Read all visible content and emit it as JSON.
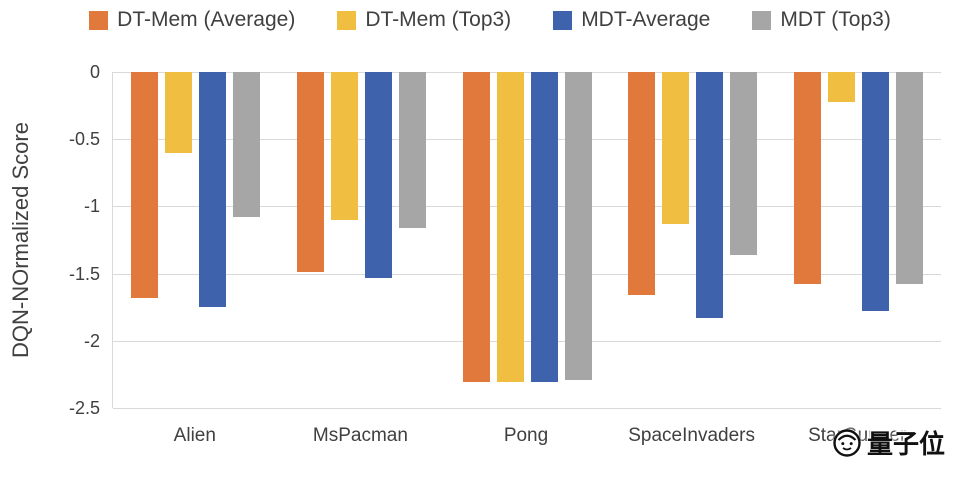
{
  "chart_data": {
    "type": "bar",
    "title": "",
    "xlabel": "",
    "ylabel": "DQN-NOrmalized Score",
    "ylim": [
      -2.5,
      0
    ],
    "yticks": [
      0,
      -0.5,
      -1,
      -1.5,
      -2,
      -2.5
    ],
    "ytick_labels": [
      "0",
      "-0.5",
      "-1",
      "-1.5",
      "-2",
      "-2.5"
    ],
    "grid": true,
    "legend_position": "top",
    "categories": [
      "Alien",
      "MsPacman",
      "Pong",
      "SpaceInvaders",
      "StarGunner"
    ],
    "series": [
      {
        "name": "DT-Mem (Average)",
        "color": "#E2793C",
        "values": [
          -1.68,
          -1.49,
          -2.31,
          -1.66,
          -1.58
        ]
      },
      {
        "name": "DT-Mem (Top3)",
        "color": "#F0BF41",
        "values": [
          -0.6,
          -1.1,
          -2.31,
          -1.13,
          -0.22
        ]
      },
      {
        "name": "MDT-Average",
        "color": "#3F62AD",
        "values": [
          -1.75,
          -1.53,
          -2.31,
          -1.83,
          -1.78
        ]
      },
      {
        "name": "MDT (Top3)",
        "color": "#A6A6A6",
        "values": [
          -1.08,
          -1.16,
          -2.29,
          -1.36,
          -1.58
        ]
      }
    ]
  },
  "watermark": {
    "text": "量子位",
    "icon": "qbit-logo-icon"
  }
}
